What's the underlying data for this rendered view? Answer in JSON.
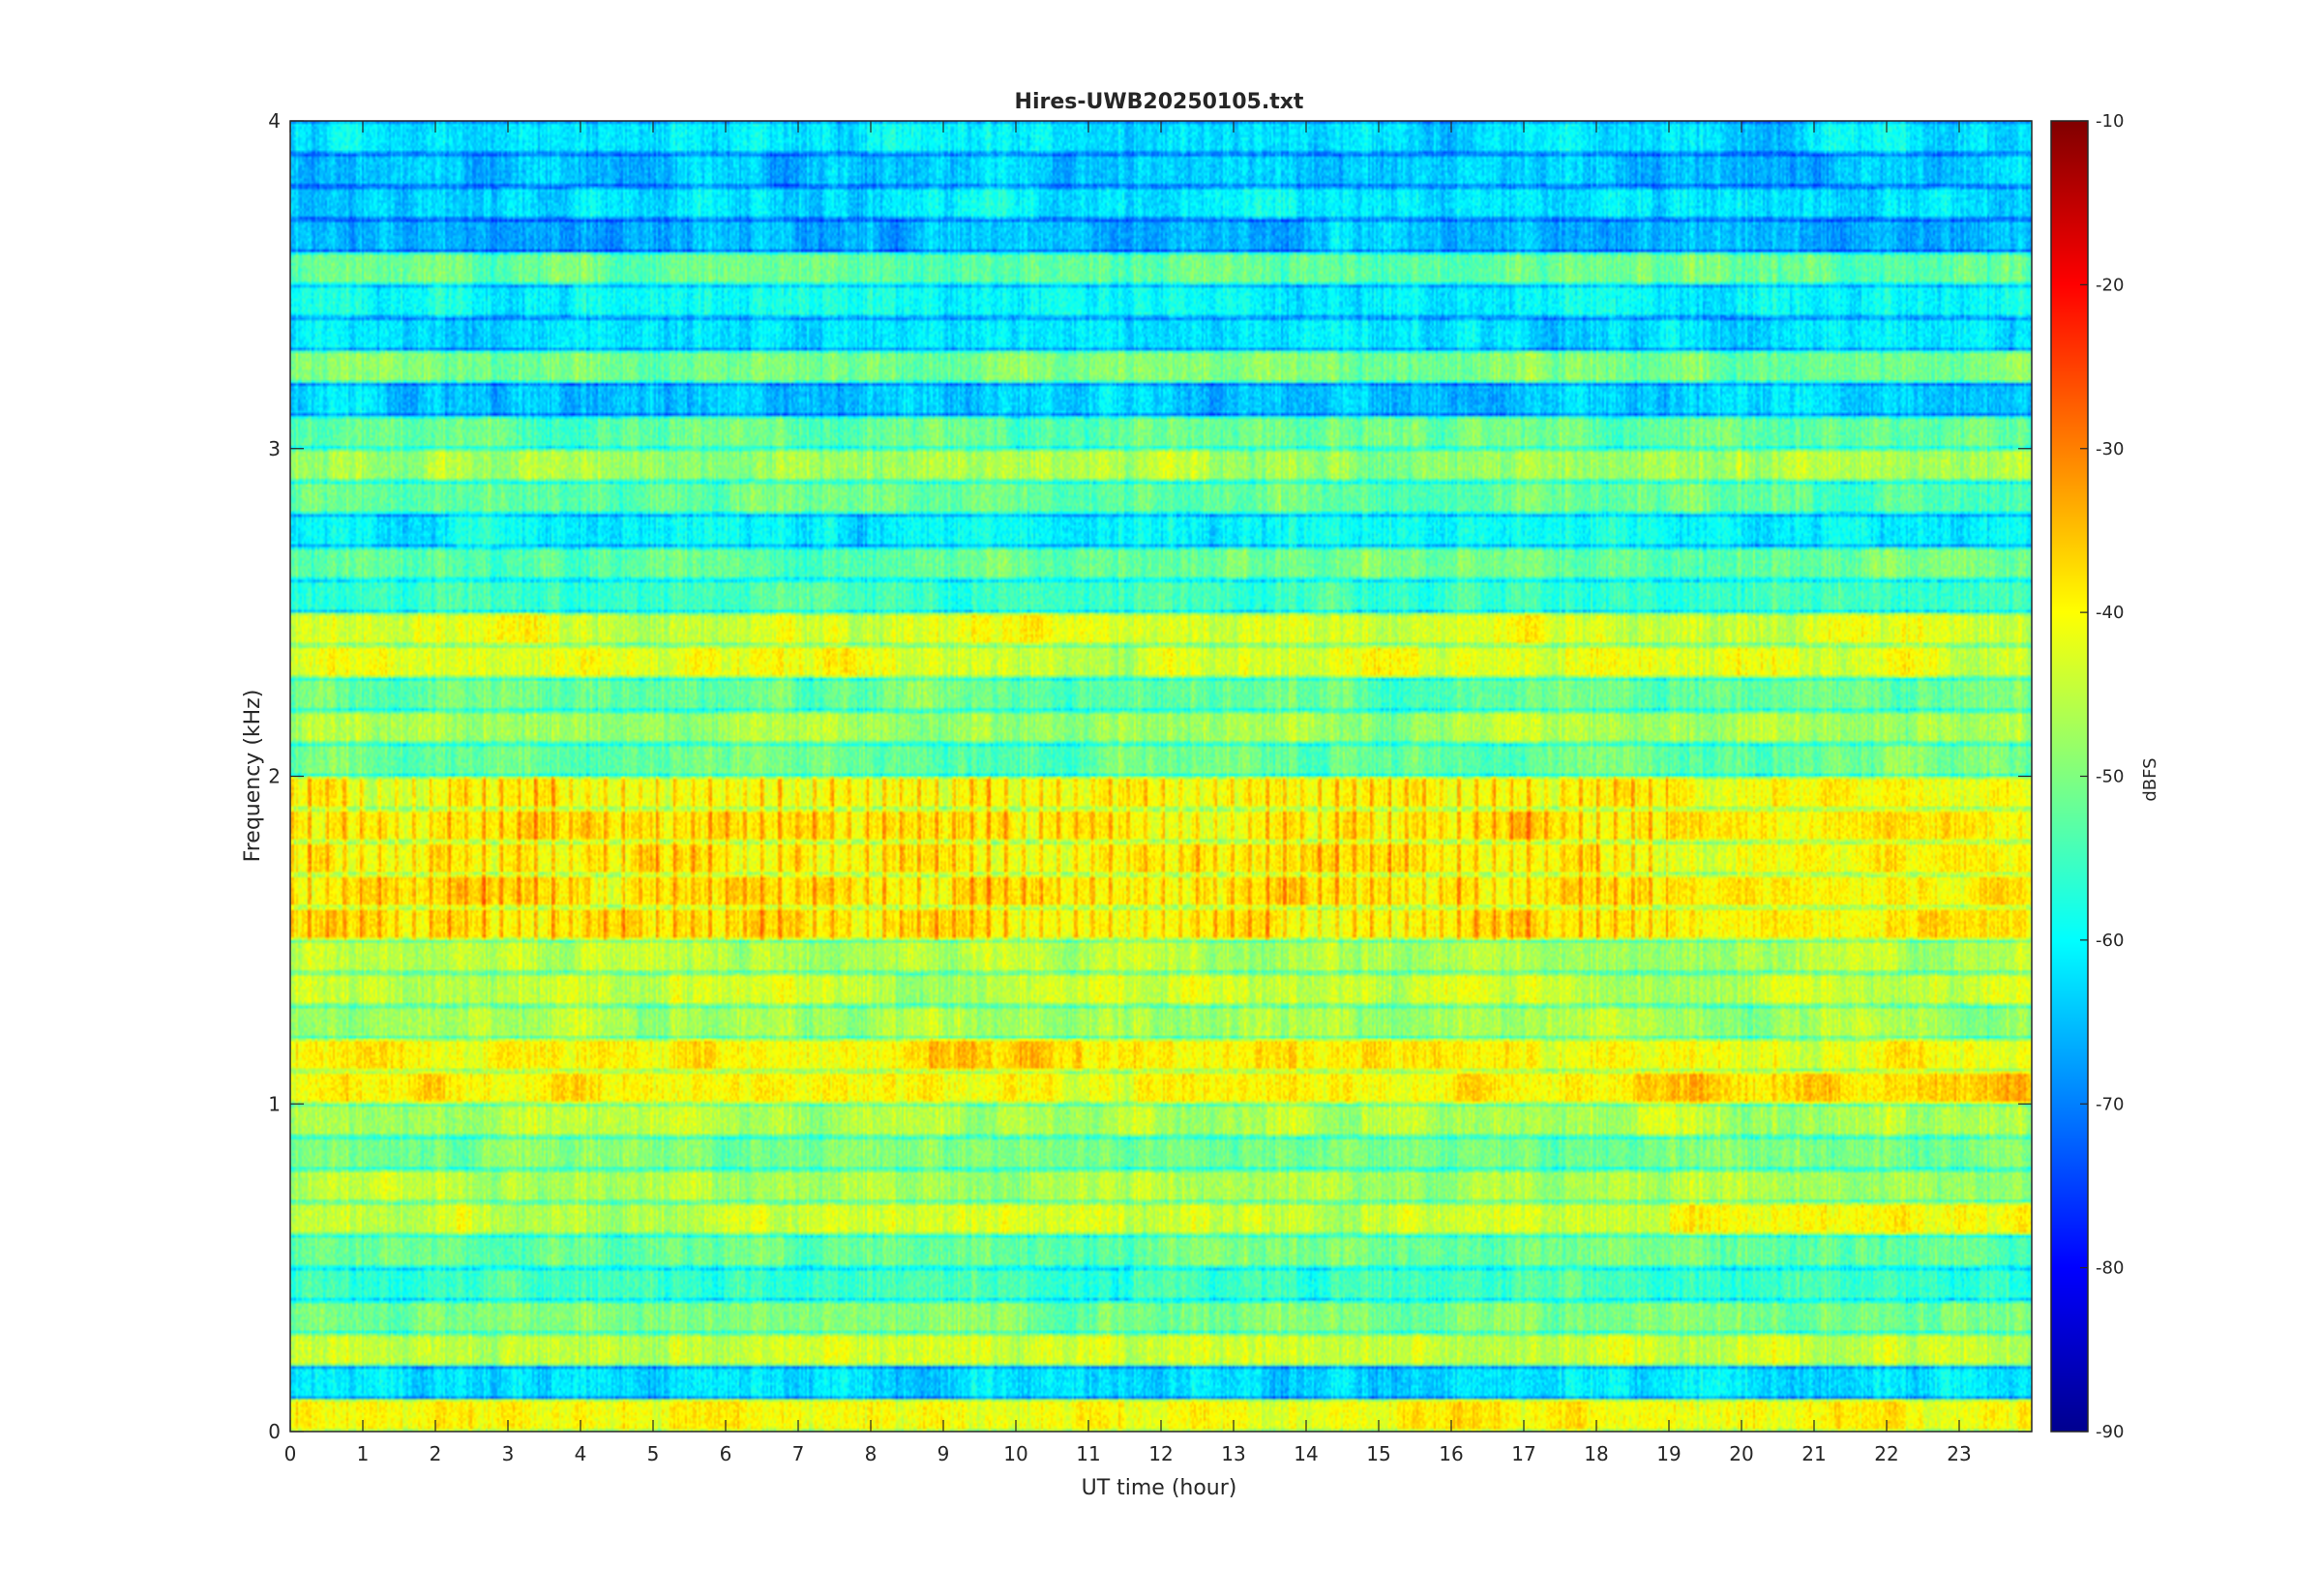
{
  "chart_data": {
    "type": "heatmap",
    "title": "Hires-UWB20250105.txt",
    "xlabel": "UT time (hour)",
    "ylabel": "Frequency (kHz)",
    "xlim": [
      0,
      24
    ],
    "ylim": [
      0,
      4
    ],
    "x_ticks": [
      "0",
      "1",
      "2",
      "3",
      "4",
      "5",
      "6",
      "7",
      "8",
      "9",
      "10",
      "11",
      "12",
      "13",
      "14",
      "15",
      "16",
      "17",
      "18",
      "19",
      "20",
      "21",
      "22",
      "23"
    ],
    "y_ticks": [
      "0",
      "1",
      "2",
      "3",
      "4"
    ],
    "colorbar": {
      "label": "dBFS",
      "range": [
        -90,
        -10
      ],
      "ticks": [
        "-90",
        "-80",
        "-70",
        "-60",
        "-50",
        "-40",
        "-30",
        "-20",
        "-10"
      ],
      "colormap": "jet"
    },
    "band_levels": [
      {
        "f": 0.05,
        "db": -40
      },
      {
        "f": 0.15,
        "db": -62
      },
      {
        "f": 0.25,
        "db": -44
      },
      {
        "f": 0.35,
        "db": -50
      },
      {
        "f": 0.45,
        "db": -55
      },
      {
        "f": 0.55,
        "db": -52
      },
      {
        "f": 0.65,
        "db": -44
      },
      {
        "f": 0.75,
        "db": -47
      },
      {
        "f": 0.85,
        "db": -50
      },
      {
        "f": 0.95,
        "db": -46
      },
      {
        "f": 1.05,
        "db": -40
      },
      {
        "f": 1.15,
        "db": -40
      },
      {
        "f": 1.25,
        "db": -47
      },
      {
        "f": 1.35,
        "db": -44
      },
      {
        "f": 1.45,
        "db": -46
      },
      {
        "f": 1.55,
        "db": -39
      },
      {
        "f": 1.65,
        "db": -39
      },
      {
        "f": 1.75,
        "db": -40
      },
      {
        "f": 1.85,
        "db": -39
      },
      {
        "f": 1.95,
        "db": -41
      },
      {
        "f": 2.05,
        "db": -52
      },
      {
        "f": 2.15,
        "db": -47
      },
      {
        "f": 2.25,
        "db": -52
      },
      {
        "f": 2.35,
        "db": -42
      },
      {
        "f": 2.45,
        "db": -43
      },
      {
        "f": 2.55,
        "db": -55
      },
      {
        "f": 2.65,
        "db": -52
      },
      {
        "f": 2.75,
        "db": -60
      },
      {
        "f": 2.85,
        "db": -52
      },
      {
        "f": 2.95,
        "db": -47
      },
      {
        "f": 3.05,
        "db": -52
      },
      {
        "f": 3.15,
        "db": -64
      },
      {
        "f": 3.25,
        "db": -50
      },
      {
        "f": 3.35,
        "db": -62
      },
      {
        "f": 3.45,
        "db": -60
      },
      {
        "f": 3.55,
        "db": -52
      },
      {
        "f": 3.65,
        "db": -66
      },
      {
        "f": 3.75,
        "db": -62
      },
      {
        "f": 3.85,
        "db": -64
      },
      {
        "f": 3.95,
        "db": -62
      }
    ]
  }
}
